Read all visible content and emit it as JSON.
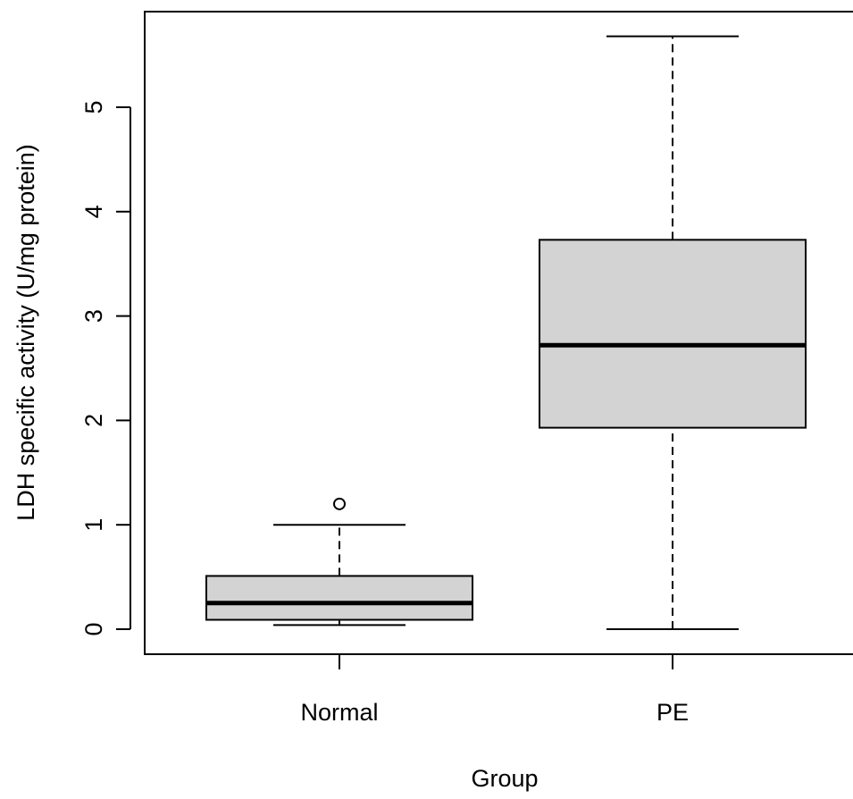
{
  "chart_data": {
    "type": "boxplot",
    "title": "",
    "xlabel": "Group",
    "ylabel": "LDH specific activity (U/mg protein)",
    "ylim": [
      -0.25,
      5.95
    ],
    "yticks": [
      "0",
      "1",
      "2",
      "3",
      "4",
      "5"
    ],
    "categories": [
      "Normal",
      "PE"
    ],
    "boxes": [
      {
        "category": "Normal",
        "whisker_low": 0.04,
        "q1": 0.09,
        "median": 0.25,
        "q3": 0.51,
        "whisker_high": 1.0,
        "outliers": [
          1.2
        ]
      },
      {
        "category": "PE",
        "whisker_low": 0.0,
        "q1": 1.93,
        "median": 2.72,
        "q3": 3.73,
        "whisker_high": 5.68,
        "outliers": []
      }
    ],
    "grid": false,
    "legend": "none",
    "colors": {
      "box_fill": "#d3d3d3",
      "stroke": "#000000",
      "background": "#ffffff"
    }
  }
}
